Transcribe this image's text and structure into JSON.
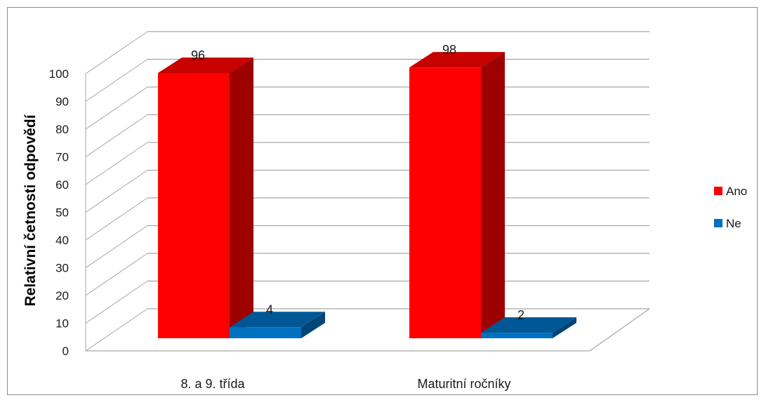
{
  "chart_data": {
    "type": "bar",
    "categories": [
      "8. a 9. třída",
      "Maturitní ročníky"
    ],
    "series": [
      {
        "name": "Ano",
        "values": [
          96,
          98
        ],
        "color": "#ff0000"
      },
      {
        "name": "Ne",
        "values": [
          4,
          2
        ],
        "color": "#0070c0"
      }
    ],
    "ylabel": "Relativní četnosti odpovědí",
    "ylim": [
      0,
      100
    ],
    "yticks": [
      0,
      10,
      20,
      30,
      40,
      50,
      60,
      70,
      80,
      90,
      100
    ],
    "data_labels": [
      "96",
      "4",
      "98",
      "2"
    ],
    "legend_position": "right",
    "grid": true,
    "style": "3d-column"
  }
}
